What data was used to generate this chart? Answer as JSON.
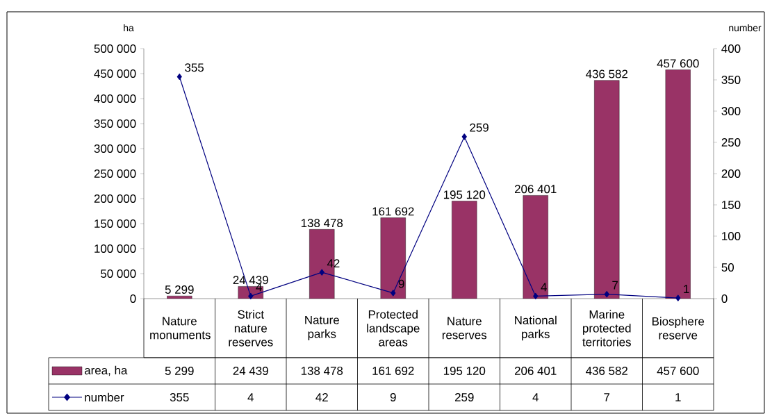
{
  "chart_data": {
    "type": "bar",
    "ylabel": "ha",
    "y2label": "number",
    "categories": [
      "Nature monuments",
      "Strict nature reserves",
      "Nature parks",
      "Protected landscape areas",
      "Nature reserves",
      "National parks",
      "Marine protected territories",
      "Biosphere reserve"
    ],
    "series": [
      {
        "name": "area, ha",
        "color": "#993366",
        "values": [
          5299,
          24439,
          138478,
          161692,
          195120,
          206401,
          436582,
          457600
        ],
        "value_labels": [
          "5 299",
          "24 439",
          "138 478",
          "161 692",
          "195 120",
          "206 401",
          "436 582",
          "457 600"
        ]
      },
      {
        "name": "number",
        "type": "line",
        "axis": "y2",
        "color": "#000080",
        "values": [
          355,
          4,
          42,
          9,
          259,
          4,
          7,
          1
        ],
        "value_labels": [
          "355",
          "4",
          "42",
          "9",
          "259",
          "4",
          "7",
          "1"
        ]
      }
    ],
    "ylim": [
      0,
      500000
    ],
    "yticks": [
      0,
      {
        "value": 50000,
        "label": "50 000"
      },
      {
        "value": 100000,
        "label": "100 000"
      },
      {
        "value": 150000,
        "label": "150 000"
      },
      {
        "value": 200000,
        "label": "200 000"
      },
      {
        "value": 250000,
        "label": "250 000"
      },
      {
        "value": 300000,
        "label": "300 000"
      },
      {
        "value": 350000,
        "label": "350 000"
      },
      {
        "value": 400000,
        "label": "400 000"
      },
      {
        "value": 450000,
        "label": "450 000"
      },
      {
        "value": 500000,
        "label": "500 000"
      }
    ],
    "y2lim": [
      0,
      400
    ],
    "y2ticks": [
      0,
      50,
      100,
      150,
      200,
      250,
      300,
      350,
      400
    ],
    "marker": "diamond",
    "legend": "bottom"
  }
}
